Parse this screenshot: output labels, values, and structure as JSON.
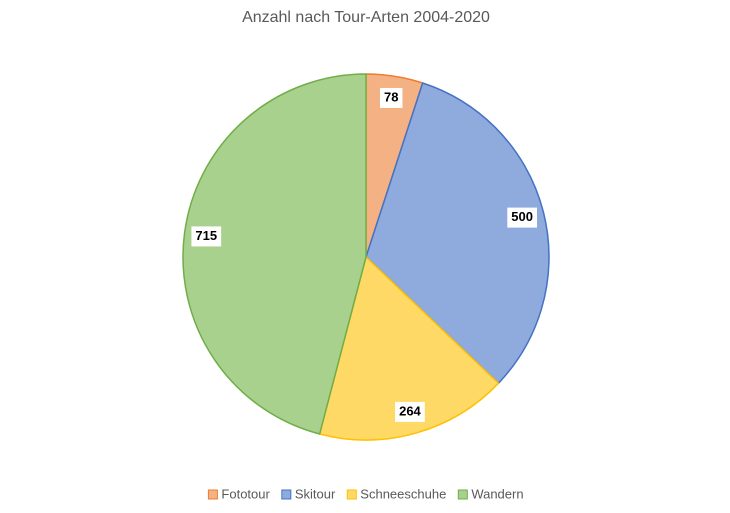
{
  "chart_data": {
    "type": "pie",
    "title": "Anzahl nach Tour-Arten 2004-2020",
    "categories": [
      "Fototour",
      "Skitour",
      "Schneeschuhe",
      "Wandern"
    ],
    "values": [
      78,
      500,
      264,
      715
    ],
    "colors": [
      "#F4B183",
      "#8FAADC",
      "#FFD966",
      "#A9D18E"
    ],
    "edge_colors": [
      "#ED7D31",
      "#4472C4",
      "#FFC000",
      "#70AD47"
    ],
    "legend": "bottom"
  }
}
